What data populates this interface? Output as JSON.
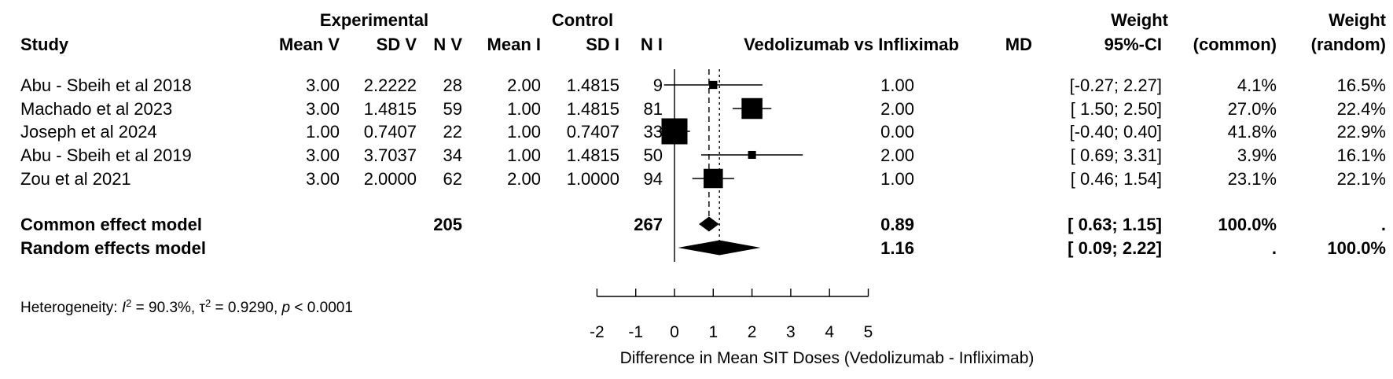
{
  "chart_data": {
    "type": "forest",
    "effect_label": "Vedolizumab vs Infliximab",
    "group_headers": {
      "experimental": "Experimental",
      "control": "Control"
    },
    "columns": {
      "study": "Study",
      "mean_v": "Mean V",
      "sd_v": "SD V",
      "n_v": "N V",
      "mean_i": "Mean I",
      "sd_i": "SD I",
      "n_i": "N I",
      "md": "MD",
      "ci": "95%-CI",
      "weight_common_1": "Weight",
      "weight_common_2": "(common)",
      "weight_random_1": "Weight",
      "weight_random_2": "(random)"
    },
    "studies": [
      {
        "study": "Abu - Sbeih et al 2018",
        "mean_v": "3.00",
        "sd_v": "2.2222",
        "n_v": "28",
        "mean_i": "2.00",
        "sd_i": "1.4815",
        "n_i": "9",
        "md": 1.0,
        "lower": -0.27,
        "upper": 2.27,
        "md_text": "1.00",
        "ci_text": "[-0.27; 2.27]",
        "w_common": "4.1%",
        "w_random": "16.5%",
        "weight": 4.1
      },
      {
        "study": "Machado et al 2023",
        "mean_v": "3.00",
        "sd_v": "1.4815",
        "n_v": "59",
        "mean_i": "1.00",
        "sd_i": "1.4815",
        "n_i": "81",
        "md": 2.0,
        "lower": 1.5,
        "upper": 2.5,
        "md_text": "2.00",
        "ci_text": "[ 1.50; 2.50]",
        "w_common": "27.0%",
        "w_random": "22.4%",
        "weight": 27.0
      },
      {
        "study": "Joseph et al 2024",
        "mean_v": "1.00",
        "sd_v": "0.7407",
        "n_v": "22",
        "mean_i": "1.00",
        "sd_i": "0.7407",
        "n_i": "33",
        "md": 0.0,
        "lower": -0.4,
        "upper": 0.4,
        "md_text": "0.00",
        "ci_text": "[-0.40; 0.40]",
        "w_common": "41.8%",
        "w_random": "22.9%",
        "weight": 41.8
      },
      {
        "study": "Abu - Sbeih et al 2019",
        "mean_v": "3.00",
        "sd_v": "3.7037",
        "n_v": "34",
        "mean_i": "1.00",
        "sd_i": "1.4815",
        "n_i": "50",
        "md": 2.0,
        "lower": 0.69,
        "upper": 3.31,
        "md_text": "2.00",
        "ci_text": "[ 0.69; 3.31]",
        "w_common": "3.9%",
        "w_random": "16.1%",
        "weight": 3.9
      },
      {
        "study": "Zou et al 2021",
        "mean_v": "3.00",
        "sd_v": "2.0000",
        "n_v": "62",
        "mean_i": "2.00",
        "sd_i": "1.0000",
        "n_i": "94",
        "md": 1.0,
        "lower": 0.46,
        "upper": 1.54,
        "md_text": "1.00",
        "ci_text": "[ 0.46; 1.54]",
        "w_common": "23.1%",
        "w_random": "22.1%",
        "weight": 23.1
      }
    ],
    "common": {
      "label": "Common effect model",
      "n_v": "205",
      "n_i": "267",
      "md": 0.89,
      "lower": 0.63,
      "upper": 1.15,
      "md_text": "0.89",
      "ci_text": "[ 0.63; 1.15]",
      "w_common": "100.0%",
      "w_random": "."
    },
    "random": {
      "label": "Random effects model",
      "md": 1.16,
      "lower": 0.09,
      "upper": 2.22,
      "md_text": "1.16",
      "ci_text": "[ 0.09; 2.22]",
      "w_common": ".",
      "w_random": "100.0%"
    },
    "heterogeneity": {
      "prefix": "Heterogeneity: ",
      "i2_symbol": "I",
      "i2_value": " = 90.3%, ",
      "tau_symbol": "τ",
      "tau_value": " = 0.9290, ",
      "p_symbol": "p",
      "p_value": " < 0.0001"
    },
    "xlim": [
      -2,
      5
    ],
    "ticks": [
      -2,
      -1,
      0,
      1,
      2,
      3,
      4,
      5
    ],
    "xlabel": "Difference in Mean SIT Doses (Vedolizumab - Infliximab)",
    "null_line": 0
  }
}
